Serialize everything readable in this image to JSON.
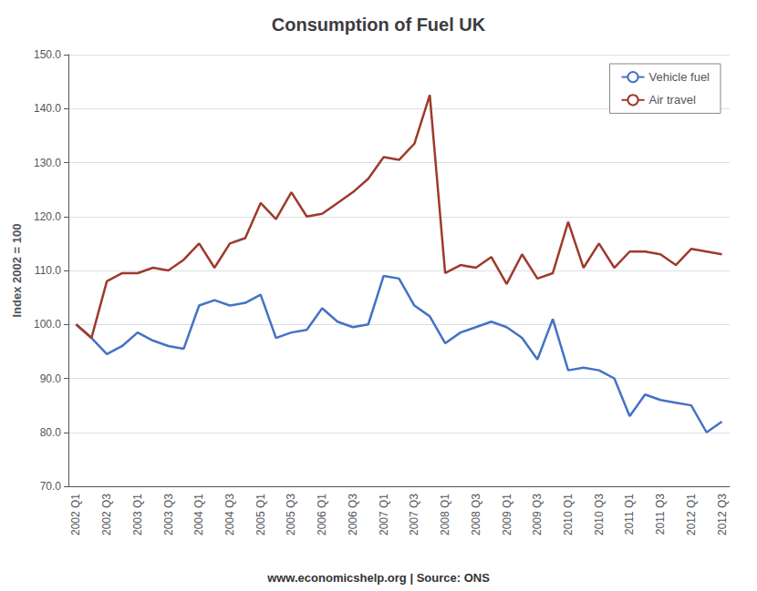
{
  "chart_data": {
    "type": "line",
    "title": "Consumption of Fuel UK",
    "ylabel": "Index 2002 = 100",
    "annotations": [
      "www.economicshelp.org | Source: ONS"
    ],
    "categories": [
      "2002 Q1",
      null,
      "2002 Q3",
      null,
      "2003 Q1",
      null,
      "2003 Q3",
      null,
      "2004 Q1",
      null,
      "2004 Q3",
      null,
      "2005 Q1",
      null,
      "2005 Q3",
      null,
      "2006 Q1",
      null,
      "2006 Q3",
      null,
      "2007 Q1",
      null,
      "2007 Q3",
      null,
      "2008 Q1",
      null,
      "2008 Q3",
      null,
      "2009 Q1",
      null,
      "2009 Q3",
      null,
      "2010 Q1",
      null,
      "2010 Q3",
      null,
      "2011 Q1",
      null,
      "2011 Q3",
      null,
      "2012 Q1",
      null,
      "2012 Q3"
    ],
    "series": [
      {
        "name": "Vehicle fuel",
        "color": "#4472C4",
        "values": [
          100.0,
          97.5,
          94.5,
          96.0,
          98.5,
          97.0,
          96.0,
          95.5,
          103.5,
          104.5,
          103.5,
          104.0,
          105.5,
          97.5,
          98.5,
          99.0,
          103.0,
          100.5,
          99.5,
          100.0,
          109.0,
          108.5,
          103.5,
          101.5,
          96.5,
          98.5,
          99.5,
          100.5,
          99.5,
          97.5,
          93.5,
          101.0,
          91.5,
          92.0,
          91.5,
          90.0,
          83.0,
          87.0,
          86.0,
          85.5,
          85.0,
          80.0,
          82.0
        ]
      },
      {
        "name": "Air travel",
        "color": "#9E3A2B",
        "values": [
          100.0,
          97.5,
          108.0,
          109.5,
          109.5,
          110.5,
          110.0,
          112.0,
          115.0,
          110.5,
          115.0,
          116.0,
          122.5,
          119.5,
          124.5,
          120.0,
          120.5,
          122.5,
          124.5,
          127.0,
          131.0,
          130.5,
          133.5,
          142.5,
          109.5,
          111.0,
          110.5,
          112.5,
          107.5,
          113.0,
          108.5,
          109.5,
          119.0,
          110.5,
          115.0,
          110.5,
          113.5,
          113.5,
          113.0,
          111.0,
          114.0,
          113.5,
          113.0
        ]
      }
    ],
    "ylim": [
      70.0,
      150.0
    ],
    "yticks": [
      {
        "value": 70.0,
        "label": "70.0"
      },
      {
        "value": 80.0,
        "label": "80.0"
      },
      {
        "value": 90.0,
        "label": "90.0"
      },
      {
        "value": 100.0,
        "label": "100.0"
      },
      {
        "value": 110.0,
        "label": "110.0"
      },
      {
        "value": 120.0,
        "label": "120.0"
      },
      {
        "value": 130.0,
        "label": "130.0"
      },
      {
        "value": 140.0,
        "label": "140.0"
      },
      {
        "value": 150.0,
        "label": "150.0"
      }
    ],
    "grid": true,
    "legend": "upper right"
  }
}
